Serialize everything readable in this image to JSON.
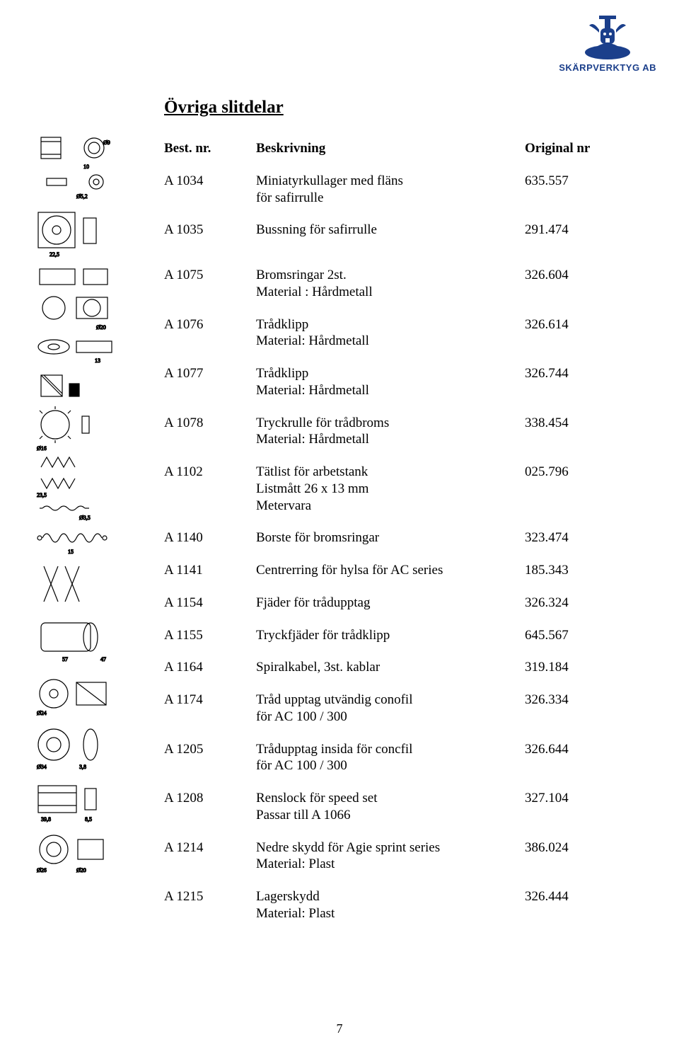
{
  "brand": {
    "name": "SKÄRPVERKTYG AB",
    "logo_color": "#1b3f8b"
  },
  "page": {
    "title": "Övriga slitdelar",
    "number": "7"
  },
  "headers": {
    "code": "Best. nr.",
    "desc": "Beskrivning",
    "orig": "Original nr"
  },
  "rows": [
    {
      "code": "A 1034",
      "desc": "Miniatyrkullager med fläns",
      "extra": "för safirrulle",
      "orig": "635.557"
    },
    {
      "code": "A 1035",
      "desc": "Bussning för safirrulle",
      "orig": "291.474",
      "gap_after": true
    },
    {
      "code": "A 1075",
      "desc": "Bromsringar 2st.",
      "extra": "Material : Hårdmetall",
      "orig": "326.604"
    },
    {
      "code": "A 1076",
      "desc": "Trådklipp",
      "extra": "Material: Hårdmetall",
      "orig": "326.614"
    },
    {
      "code": "A 1077",
      "desc": "Trådklipp",
      "extra": "Material: Hårdmetall",
      "orig": "326.744"
    },
    {
      "code": "A 1078",
      "desc": "Tryckrulle för trådbroms",
      "extra": "Material: Hårdmetall",
      "orig": "338.454"
    },
    {
      "code": "A 1102",
      "desc": "Tätlist för arbetstank",
      "extra": "Listmått 26 x 13 mm",
      "extra2": "Metervara",
      "orig": "025.796"
    },
    {
      "code": "A 1140",
      "desc": "Borste för bromsringar",
      "orig": "323.474"
    },
    {
      "code": "A 1141",
      "desc": "Centrerring för hylsa för AC series",
      "orig": "185.343"
    },
    {
      "code": "A 1154",
      "desc": "Fjäder för trådupptag",
      "orig": "326.324"
    },
    {
      "code": "A 1155",
      "desc": "Tryckfjäder för trådklipp",
      "orig": "645.567"
    },
    {
      "code": "A 1164",
      "desc": "Spiralkabel, 3st. kablar",
      "orig": "319.184"
    },
    {
      "code": "A 1174",
      "desc": "Tråd upptag utvändig conofil",
      "extra": "för AC 100 / 300",
      "orig": "326.334"
    },
    {
      "code": "A 1205",
      "desc": "Trådupptag insida för concfil",
      "extra": "för AC 100 / 300",
      "orig": "326.644"
    },
    {
      "code": "A 1208",
      "desc": "Renslock för speed set",
      "extra": "Passar till A 1066",
      "orig": "327.104"
    },
    {
      "code": "A 1214",
      "desc": "Nedre skydd för Agie sprint series",
      "extra": "Material: Plast",
      "orig": "386.024"
    },
    {
      "code": "A 1215",
      "desc": "Lagerskydd",
      "extra": "Material: Plast",
      "orig": "326.444"
    }
  ],
  "drawing": {
    "stroke": "#000000",
    "fill": "#ffffff"
  }
}
